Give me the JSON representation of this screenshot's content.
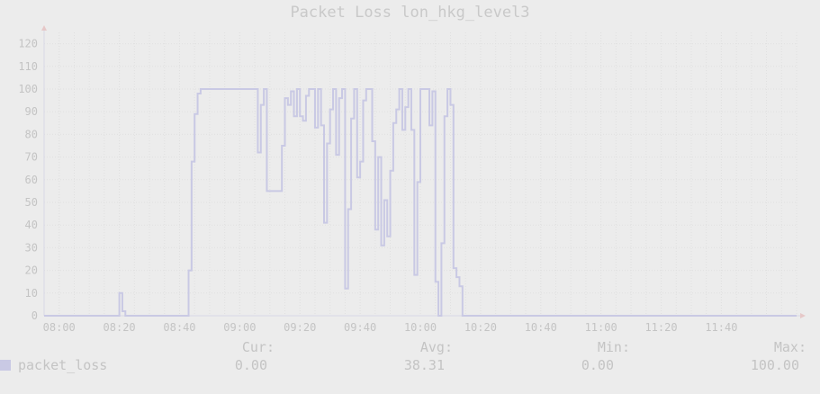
{
  "chart_data": {
    "type": "line",
    "title": "Packet Loss lon_hkg_level3",
    "xlabel": "",
    "ylabel": "",
    "x_start": "07:55",
    "x_end": "12:05",
    "ylim": [
      0,
      125
    ],
    "grid": true,
    "yticks": [
      0,
      10,
      20,
      30,
      40,
      50,
      60,
      70,
      80,
      90,
      100,
      110,
      120
    ],
    "xticks": [
      "08:00",
      "08:20",
      "08:40",
      "09:00",
      "09:20",
      "09:40",
      "10:00",
      "10:20",
      "10:40",
      "11:00",
      "11:20",
      "11:40"
    ],
    "series": [
      {
        "name": "packet_loss",
        "color": "#c9c9e4",
        "x": [
          "07:55",
          "08:20",
          "08:21",
          "08:22",
          "08:43",
          "08:44",
          "08:45",
          "08:46",
          "08:47",
          "09:06",
          "09:07",
          "09:08",
          "09:09",
          "09:14",
          "09:15",
          "09:16",
          "09:17",
          "09:18",
          "09:19",
          "09:20",
          "09:21",
          "09:22",
          "09:23",
          "09:24",
          "09:25",
          "09:26",
          "09:27",
          "09:28",
          "09:29",
          "09:30",
          "09:31",
          "09:32",
          "09:33",
          "09:34",
          "09:35",
          "09:36",
          "09:37",
          "09:38",
          "09:39",
          "09:40",
          "09:41",
          "09:42",
          "09:43",
          "09:44",
          "09:45",
          "09:46",
          "09:47",
          "09:48",
          "09:49",
          "09:50",
          "09:51",
          "09:52",
          "09:53",
          "09:54",
          "09:55",
          "09:56",
          "09:57",
          "09:58",
          "09:59",
          "10:00",
          "10:01",
          "10:02",
          "10:03",
          "10:04",
          "10:05",
          "10:06",
          "10:07",
          "10:08",
          "10:09",
          "10:10",
          "10:11",
          "10:12",
          "10:13",
          "10:14",
          "10:15",
          "10:16",
          "10:17",
          "10:18",
          "10:19",
          "10:20",
          "10:21",
          "10:22",
          "10:23",
          "10:24",
          "10:25",
          "10:26",
          "10:27",
          "10:28",
          "10:29",
          "10:30",
          "10:31",
          "10:32",
          "10:33",
          "10:34",
          "10:35",
          "10:36",
          "10:37",
          "12:05"
        ],
        "values": [
          0,
          10,
          2,
          0,
          20,
          68,
          89,
          98,
          100,
          72,
          93,
          100,
          55,
          75,
          96,
          93,
          99,
          88,
          100,
          88,
          86,
          97,
          100,
          100,
          83,
          100,
          84,
          41,
          76,
          91,
          100,
          71,
          96,
          100,
          12,
          47,
          87,
          100,
          61,
          68,
          95,
          100,
          100,
          77,
          38,
          70,
          31,
          51,
          35,
          64,
          85,
          91,
          100,
          82,
          92,
          100,
          82,
          18,
          59,
          100,
          100,
          100,
          84,
          99,
          15,
          0,
          32,
          88,
          100,
          93,
          21,
          17,
          13,
          0,
          0,
          0,
          0,
          0,
          0,
          0,
          0,
          0,
          0,
          0,
          0,
          0,
          0,
          0,
          0,
          0,
          0,
          0,
          0,
          0,
          0,
          0,
          0,
          0
        ]
      }
    ]
  },
  "legend": {
    "label": "packet_loss",
    "cur_label": "Cur:",
    "cur_value": "0.00",
    "avg_label": "Avg:",
    "avg_value": "38.31",
    "min_label": "Min:",
    "min_value": "0.00",
    "max_label": "Max:",
    "max_value": "100.00"
  },
  "colors": {
    "background": "#ececec",
    "text": "#c4c4c4",
    "grid": "#e0e0e0",
    "series": "#c9c9e4"
  }
}
